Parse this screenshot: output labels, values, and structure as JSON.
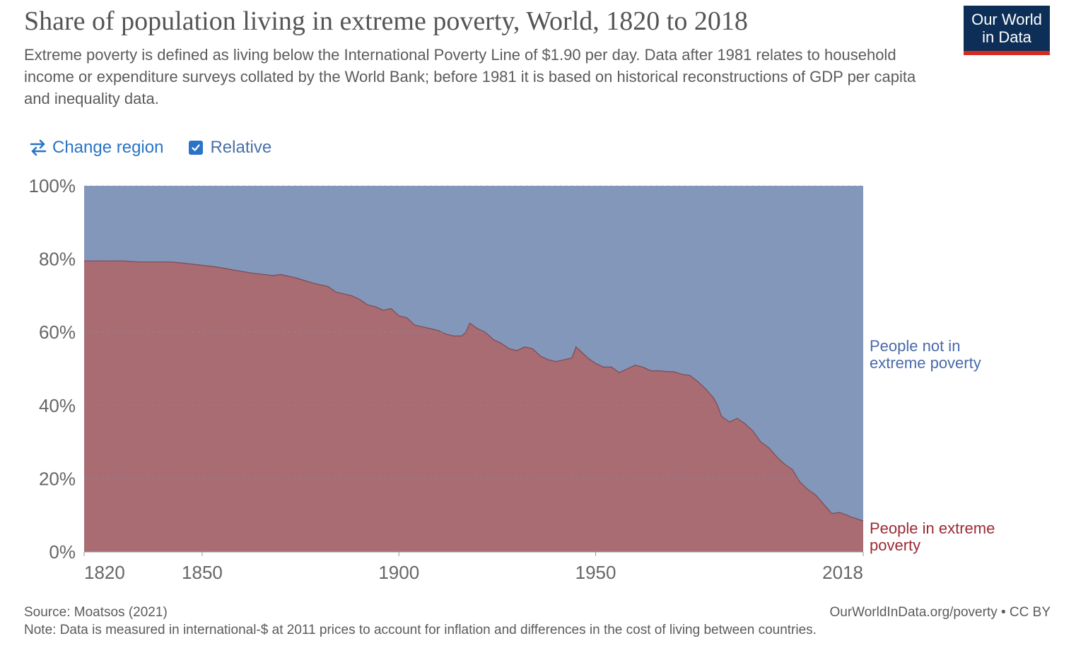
{
  "title": "Share of population living in extreme poverty, World, 1820 to 2018",
  "subtitle": "Extreme poverty is defined as living below the International Poverty Line of $1.90 per day. Data after 1981 relates to household income or expenditure surveys collated by the World Bank; before 1981 it is based on historical reconstructions of GDP per capita and inequality data.",
  "logo": {
    "line1": "Our World",
    "line2": "in Data"
  },
  "controls": {
    "change_region": "Change region",
    "relative": "Relative"
  },
  "footer": {
    "source": "Source: Moatsos (2021)",
    "note": "Note: Data is measured in international-$ at 2011 prices to account for inflation and differences in the cost of living between countries.",
    "right": "OurWorldInData.org/poverty • CC BY"
  },
  "colors": {
    "poverty": "#a86c72",
    "not_poverty": "#8397bb",
    "poverty_line": "#7d4a52",
    "label_poverty": "#9b2a34",
    "label_not_poverty": "#4a6aa8"
  },
  "chart_data": {
    "type": "area",
    "stacked": true,
    "relative": true,
    "xlim": [
      1820,
      2018
    ],
    "ylim": [
      0,
      100
    ],
    "x_ticks": [
      "1820",
      "1850",
      "1900",
      "1950",
      "2018"
    ],
    "y_ticks": [
      "0%",
      "20%",
      "40%",
      "60%",
      "80%",
      "100%"
    ],
    "grid": true,
    "series": [
      {
        "name": "People in extreme poverty",
        "label_lines": [
          "People in extreme",
          "poverty"
        ],
        "x": [
          1820,
          1822,
          1826,
          1830,
          1834,
          1838,
          1842,
          1846,
          1850,
          1854,
          1858,
          1862,
          1864,
          1868,
          1870,
          1874,
          1878,
          1880,
          1882,
          1884,
          1886,
          1888,
          1890,
          1892,
          1894,
          1896,
          1898,
          1900,
          1902,
          1904,
          1906,
          1908,
          1910,
          1912,
          1914,
          1916,
          1917,
          1918,
          1920,
          1922,
          1924,
          1926,
          1928,
          1930,
          1932,
          1934,
          1936,
          1938,
          1940,
          1942,
          1944,
          1945,
          1946,
          1948,
          1950,
          1952,
          1954,
          1956,
          1958,
          1960,
          1962,
          1964,
          1966,
          1968,
          1970,
          1972,
          1974,
          1976,
          1978,
          1980,
          1981,
          1982,
          1984,
          1986,
          1988,
          1990,
          1992,
          1994,
          1996,
          1998,
          2000,
          2002,
          2004,
          2006,
          2008,
          2010,
          2012,
          2014,
          2015,
          2016,
          2017,
          2018
        ],
        "values": [
          79.5,
          79.5,
          79.5,
          79.5,
          79.2,
          79.2,
          79.2,
          78.8,
          78.3,
          77.8,
          77.0,
          76.3,
          76.0,
          75.5,
          75.8,
          74.8,
          73.5,
          73.0,
          72.5,
          71.0,
          70.5,
          70.0,
          69.0,
          67.5,
          67.0,
          66.0,
          66.5,
          64.5,
          64.0,
          62.0,
          61.5,
          61.0,
          60.5,
          59.5,
          59.0,
          59.0,
          60.0,
          62.5,
          61.0,
          60.0,
          58.0,
          57.0,
          55.5,
          55.0,
          56.0,
          55.5,
          53.5,
          52.5,
          52.0,
          52.5,
          53.0,
          56.0,
          55.0,
          53.0,
          51.5,
          50.5,
          50.5,
          49.0,
          50.0,
          51.0,
          50.5,
          49.5,
          49.5,
          49.3,
          49.2,
          48.5,
          48.2,
          46.5,
          44.5,
          42.0,
          40.0,
          37.0,
          35.5,
          36.5,
          35.0,
          33.0,
          30.0,
          28.5,
          26.0,
          24.0,
          22.5,
          19.0,
          17.0,
          15.5,
          13.0,
          10.5,
          10.8,
          10.0,
          9.5,
          9.2,
          8.8,
          8.5
        ]
      },
      {
        "name": "People not in extreme poverty",
        "label_lines": [
          "People not in",
          "extreme poverty"
        ]
      }
    ]
  }
}
